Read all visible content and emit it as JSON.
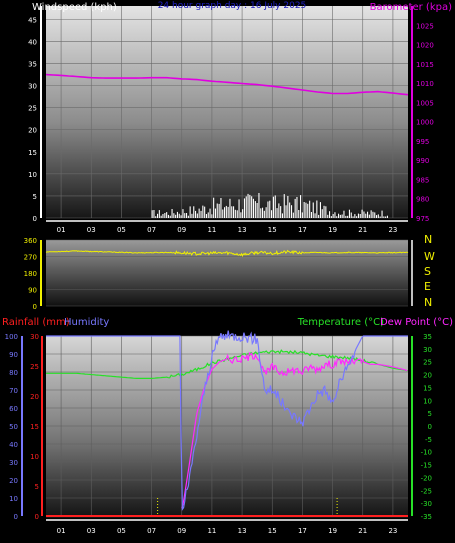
{
  "chart_data": [
    {
      "type": "line",
      "title": "24 hour graph day : 16 July 2025",
      "ylabel_left": "Windspeed (kph)",
      "ylabel_right": "Barometer (kpa)",
      "x_ticks": [
        "01",
        "03",
        "05",
        "07",
        "09",
        "11",
        "13",
        "15",
        "17",
        "19",
        "21",
        "23"
      ],
      "y_left_ticks": [
        0,
        5,
        10,
        15,
        20,
        25,
        30,
        35,
        40,
        45
      ],
      "y_right_ticks": [
        975,
        980,
        985,
        990,
        995,
        1000,
        1005,
        1010,
        1015,
        1020,
        1025
      ],
      "ylim_left": [
        0,
        48
      ],
      "ylim_right": [
        975,
        1030
      ],
      "grid": true,
      "series": [
        {
          "name": "Barometer (kpa)",
          "axis": "right",
          "color": "#e000e0",
          "hours": [
            0,
            1,
            2,
            3,
            4,
            5,
            6,
            7,
            8,
            9,
            10,
            11,
            12,
            13,
            14,
            15,
            16,
            17,
            18,
            19,
            20,
            21,
            22,
            23,
            24
          ],
          "values": [
            1012.2,
            1012.0,
            1011.7,
            1011.4,
            1011.3,
            1011.3,
            1011.3,
            1011.4,
            1011.4,
            1011.1,
            1010.9,
            1010.5,
            1010.2,
            1009.9,
            1009.6,
            1009.2,
            1008.7,
            1008.2,
            1007.7,
            1007.3,
            1007.3,
            1007.6,
            1007.8,
            1007.4,
            1007.0
          ]
        },
        {
          "name": "Windspeed (kph)",
          "axis": "left",
          "color": "#ffffff",
          "hours": [
            7,
            8,
            9,
            10,
            11,
            12,
            13,
            14,
            15,
            16,
            17,
            18,
            19,
            20,
            21,
            22
          ],
          "values": [
            1.5,
            1.5,
            2.0,
            2.5,
            3.5,
            4.0,
            4.5,
            4.5,
            4.0,
            4.5,
            4.0,
            3.0,
            2.0,
            1.5,
            1.5,
            1.5
          ]
        }
      ]
    },
    {
      "type": "scatter",
      "y_ticks": [
        0,
        90,
        180,
        270,
        360
      ],
      "ylim": [
        0,
        360
      ],
      "compass_labels": [
        "N",
        "W",
        "S",
        "E",
        "N"
      ],
      "series": [
        {
          "name": "Wind direction",
          "color": "#f0f000",
          "hours": [
            0,
            2,
            4,
            6,
            8,
            9,
            10,
            11,
            12,
            13,
            14,
            15,
            16,
            17,
            18,
            19,
            20,
            22,
            24
          ],
          "values": [
            295,
            300,
            295,
            290,
            292,
            290,
            285,
            288,
            290,
            280,
            292,
            288,
            295,
            290,
            292,
            290,
            292,
            290,
            292
          ]
        }
      ]
    },
    {
      "type": "line",
      "ylabel_left_a": "Rainfall (mm)",
      "ylabel_left_b": "Humidity",
      "ylabel_right_a": "Temperature (°C)",
      "ylabel_right_b": "Dew Point (°C)",
      "x_ticks": [
        "01",
        "03",
        "05",
        "07",
        "09",
        "11",
        "13",
        "15",
        "17",
        "19",
        "21",
        "23"
      ],
      "y_rain_ticks": [
        0,
        5,
        10,
        15,
        20,
        25,
        30
      ],
      "y_humidity_ticks": [
        0,
        10,
        20,
        30,
        40,
        50,
        60,
        70,
        80,
        90,
        100
      ],
      "y_temp_ticks": [
        -35,
        -30,
        -25,
        -20,
        -15,
        -10,
        -5,
        0,
        5,
        10,
        15,
        20,
        25,
        30,
        35
      ],
      "ylim_humidity": [
        0,
        100
      ],
      "ylim_temp": [
        -35,
        35
      ],
      "grid": true,
      "series": [
        {
          "name": "Humidity",
          "axis": "humidity",
          "color": "#7878ff",
          "hours": [
            0,
            1,
            2,
            3,
            4,
            5,
            6,
            7,
            8,
            8.5,
            8.9,
            9.0,
            9.1,
            9.5,
            10,
            10.5,
            11,
            11.5,
            12,
            13,
            14,
            14.5,
            15,
            15.5,
            16,
            16.5,
            17,
            17.5,
            18,
            18.5,
            19,
            19.5,
            20,
            20.5,
            21,
            22,
            23,
            24
          ],
          "values": [
            100,
            100,
            100,
            100,
            100,
            100,
            100,
            100,
            100,
            100,
            100,
            3,
            5,
            20,
            45,
            70,
            88,
            100,
            100,
            100,
            98,
            70,
            70,
            65,
            58,
            55,
            52,
            60,
            68,
            70,
            62,
            75,
            82,
            92,
            100,
            100,
            100,
            100
          ]
        },
        {
          "name": "Temperature (°C)",
          "axis": "temp",
          "color": "#28e028",
          "hours": [
            0,
            1,
            2,
            3,
            4,
            5,
            6,
            7,
            8,
            9,
            10,
            11,
            12,
            13,
            14,
            15,
            16,
            17,
            18,
            19,
            20,
            21,
            22,
            23,
            24
          ],
          "values": [
            20.5,
            20.5,
            20.5,
            20.0,
            19.5,
            19.0,
            18.5,
            18.5,
            19.0,
            20.0,
            22.0,
            24.5,
            26.0,
            27.5,
            28.5,
            29.0,
            28.8,
            28.5,
            27.5,
            27.0,
            26.5,
            25.5,
            24.0,
            22.5,
            21.5
          ]
        },
        {
          "name": "Dew Point (°C)",
          "axis": "temp",
          "color": "#ff28ff",
          "hours": [
            9.0,
            9.1,
            9.5,
            10,
            10.5,
            11,
            11.5,
            12,
            12.5,
            13,
            13.5,
            14,
            14.5,
            15,
            15.5,
            16,
            16.5,
            17,
            17.5,
            18,
            18.5,
            19,
            19.5,
            20,
            20.5,
            21,
            21.5,
            22,
            23,
            24
          ],
          "values": [
            -32,
            -30,
            -15,
            5,
            15,
            22,
            25,
            26,
            26,
            26,
            27,
            28,
            20,
            23,
            21,
            21,
            22,
            21,
            23,
            22,
            24,
            24,
            25,
            25,
            25,
            25,
            24,
            24,
            23,
            21.5
          ]
        },
        {
          "name": "Rainfall (mm)",
          "axis": "rain",
          "color": "#ff2020",
          "hours": [
            0,
            24
          ],
          "values": [
            0,
            0
          ]
        }
      ]
    }
  ]
}
